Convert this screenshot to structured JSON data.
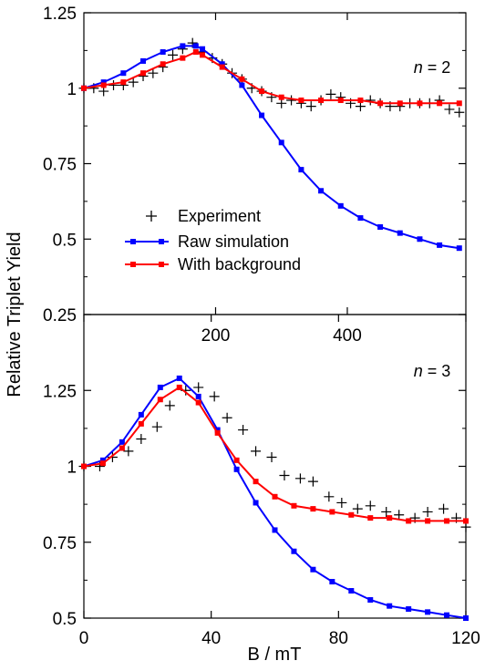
{
  "figure": {
    "ylabel": "Relative Triplet Yield",
    "xlabel_bottom": "B / mT"
  },
  "legend": {
    "entries": [
      {
        "label": "Experiment",
        "marker": "plus",
        "color": "#000000"
      },
      {
        "label": "Raw simulation",
        "marker": "square-line",
        "color": "#0000ff"
      },
      {
        "label": "With background",
        "marker": "square-line",
        "color": "#ff0000"
      }
    ]
  },
  "colors": {
    "raw": "#0000ff",
    "background": "#ff0000",
    "experiment": "#000000"
  },
  "chart_data": [
    {
      "type": "line",
      "panel_label_var": "n",
      "panel_label_rest": " = 2",
      "xlim": [
        0,
        580
      ],
      "ylim": [
        0.25,
        1.25
      ],
      "xticks": [
        200,
        400
      ],
      "xtick_labels": [
        "200",
        "400"
      ],
      "yticks": [
        0.25,
        0.5,
        0.75,
        1,
        1.25
      ],
      "ytick_labels": [
        "0.25",
        "0.5",
        "0.75",
        "1",
        "1.25"
      ],
      "series": [
        {
          "name": "Experiment",
          "kind": "plus",
          "color": "#000000",
          "x": [
            0,
            15,
            30,
            45,
            60,
            75,
            90,
            105,
            120,
            135,
            150,
            165,
            180,
            195,
            210,
            225,
            240,
            255,
            270,
            285,
            300,
            315,
            330,
            345,
            360,
            375,
            390,
            405,
            420,
            435,
            450,
            465,
            480,
            495,
            510,
            525,
            540,
            555,
            570
          ],
          "y": [
            1.0,
            1.0,
            0.99,
            1.01,
            1.01,
            1.02,
            1.04,
            1.05,
            1.07,
            1.11,
            1.13,
            1.15,
            1.12,
            1.1,
            1.08,
            1.05,
            1.03,
            1.0,
            0.99,
            0.97,
            0.95,
            0.96,
            0.95,
            0.94,
            0.96,
            0.98,
            0.97,
            0.95,
            0.94,
            0.96,
            0.95,
            0.94,
            0.94,
            0.95,
            0.95,
            0.95,
            0.96,
            0.93,
            0.92
          ]
        },
        {
          "name": "Raw simulation",
          "kind": "line-square",
          "color": "#0000ff",
          "x": [
            0,
            30,
            60,
            90,
            120,
            150,
            170,
            180,
            210,
            240,
            270,
            300,
            330,
            360,
            390,
            420,
            450,
            480,
            510,
            540,
            570
          ],
          "y": [
            1.0,
            1.02,
            1.05,
            1.09,
            1.12,
            1.14,
            1.14,
            1.13,
            1.08,
            1.01,
            0.91,
            0.82,
            0.73,
            0.66,
            0.61,
            0.57,
            0.54,
            0.52,
            0.5,
            0.48,
            0.47
          ]
        },
        {
          "name": "With background",
          "kind": "line-square",
          "color": "#ff0000",
          "x": [
            0,
            30,
            60,
            90,
            120,
            150,
            170,
            180,
            210,
            240,
            270,
            300,
            330,
            360,
            390,
            420,
            450,
            480,
            510,
            540,
            570
          ],
          "y": [
            1.0,
            1.01,
            1.02,
            1.05,
            1.08,
            1.1,
            1.12,
            1.11,
            1.07,
            1.03,
            0.99,
            0.97,
            0.96,
            0.96,
            0.96,
            0.96,
            0.95,
            0.95,
            0.95,
            0.95,
            0.95
          ]
        }
      ]
    },
    {
      "type": "line",
      "panel_label_var": "n",
      "panel_label_rest": " = 3",
      "xlim": [
        0,
        120
      ],
      "ylim": [
        0.5,
        1.5
      ],
      "xticks": [
        0,
        40,
        80,
        120
      ],
      "xtick_labels": [
        "0",
        "40",
        "80",
        "120"
      ],
      "yticks": [
        0.5,
        0.75,
        1,
        1.25
      ],
      "ytick_labels": [
        "0.5",
        "0.75",
        "1",
        "1.25"
      ],
      "series": [
        {
          "name": "Experiment",
          "kind": "plus",
          "color": "#000000",
          "x": [
            0,
            5,
            9,
            14,
            18,
            23,
            27,
            32,
            36,
            41,
            45,
            50,
            54,
            59,
            63,
            68,
            72,
            77,
            81,
            86,
            90,
            95,
            99,
            104,
            108,
            113,
            117,
            120
          ],
          "y": [
            1.0,
            1.0,
            1.03,
            1.05,
            1.09,
            1.13,
            1.2,
            1.25,
            1.26,
            1.23,
            1.16,
            1.12,
            1.05,
            1.03,
            0.97,
            0.96,
            0.95,
            0.9,
            0.88,
            0.86,
            0.87,
            0.85,
            0.84,
            0.83,
            0.85,
            0.86,
            0.83,
            0.8
          ]
        },
        {
          "name": "Raw simulation",
          "kind": "line-square",
          "color": "#0000ff",
          "x": [
            0,
            6,
            12,
            18,
            24,
            30,
            36,
            42,
            48,
            54,
            60,
            66,
            72,
            78,
            84,
            90,
            96,
            102,
            108,
            114,
            120
          ],
          "y": [
            1.0,
            1.02,
            1.08,
            1.17,
            1.26,
            1.29,
            1.23,
            1.12,
            0.99,
            0.88,
            0.79,
            0.72,
            0.66,
            0.62,
            0.59,
            0.56,
            0.54,
            0.53,
            0.52,
            0.51,
            0.5
          ]
        },
        {
          "name": "With background",
          "kind": "line-square",
          "color": "#ff0000",
          "x": [
            0,
            6,
            12,
            18,
            24,
            30,
            36,
            42,
            48,
            54,
            60,
            66,
            72,
            78,
            84,
            90,
            96,
            102,
            108,
            114,
            120
          ],
          "y": [
            1.0,
            1.01,
            1.06,
            1.14,
            1.22,
            1.26,
            1.21,
            1.11,
            1.02,
            0.95,
            0.9,
            0.87,
            0.86,
            0.85,
            0.84,
            0.83,
            0.83,
            0.82,
            0.82,
            0.82,
            0.82
          ]
        }
      ]
    }
  ]
}
